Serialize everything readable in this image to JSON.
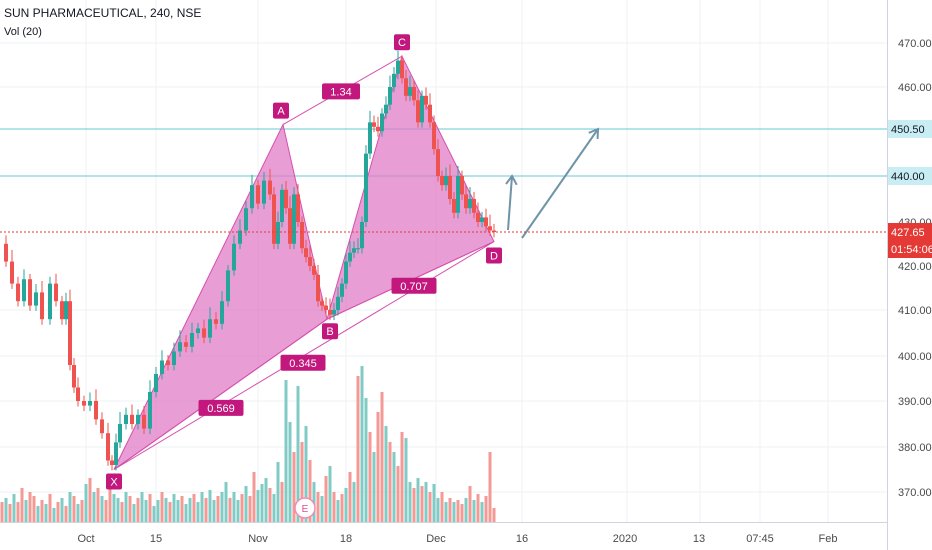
{
  "header": {
    "symbol": "SUN PHARMACEUTICAL, 240, NSE",
    "volume_indicator": "Vol (20)"
  },
  "colors": {
    "up": "#26a69a",
    "down": "#ef5350",
    "vol_up": "#80cbc4",
    "vol_down": "#f39a96",
    "pattern_fill": "#e07cc6",
    "pattern_stroke": "#d64fae",
    "label_bg": "#c2187d",
    "hline": "#67c9d6",
    "arrow": "#6f94a8",
    "price_line": "#e53935",
    "axis_text": "#4a4a4a",
    "grid": "#eef1f4"
  },
  "chart_data": {
    "type": "candlestick",
    "ylim": [
      362,
      478
    ],
    "y_ticks": [
      "470.00",
      "460.00",
      "440.00",
      "420.00",
      "410.00",
      "400.00",
      "390.00",
      "380.00",
      "370.00"
    ],
    "x_tick_labels": [
      "Oct",
      "15",
      "Nov",
      "18",
      "Dec",
      "16",
      "2020",
      "13",
      "07:45",
      "Feb"
    ],
    "price_labels": {
      "last": "427.65",
      "countdown": "01:54:06",
      "level_1": "450.50",
      "level_2": "440.00",
      "partial_tick": "430.00"
    },
    "horizontal_levels": [
      450.5,
      440.0
    ],
    "last_price": 427.65,
    "pattern": {
      "points": [
        {
          "label": "X",
          "price": 375
        },
        {
          "label": "A",
          "price": 451.5
        },
        {
          "label": "B",
          "price": 408
        },
        {
          "label": "C",
          "price": 467
        },
        {
          "label": "D",
          "price": 425.5
        }
      ],
      "ratios": [
        "0.569",
        "0.345",
        "1.34",
        "0.707"
      ]
    },
    "projection_targets": [
      440.0,
      450.5
    ],
    "close_points": [
      [
        0,
        425
      ],
      [
        6,
        421
      ],
      [
        12,
        416
      ],
      [
        18,
        412
      ],
      [
        24,
        417
      ],
      [
        30,
        411
      ],
      [
        36,
        414
      ],
      [
        42,
        408
      ],
      [
        50,
        416
      ],
      [
        56,
        412
      ],
      [
        62,
        408
      ],
      [
        66,
        412
      ],
      [
        70,
        398
      ],
      [
        74,
        393
      ],
      [
        78,
        390
      ],
      [
        84,
        389
      ],
      [
        90,
        390
      ],
      [
        96,
        386
      ],
      [
        102,
        383
      ],
      [
        108,
        377
      ],
      [
        112,
        376
      ],
      [
        116,
        381
      ],
      [
        120,
        385
      ],
      [
        126,
        387
      ],
      [
        132,
        385
      ],
      [
        138,
        387
      ],
      [
        144,
        384
      ],
      [
        150,
        392
      ],
      [
        156,
        396
      ],
      [
        162,
        399
      ],
      [
        168,
        398
      ],
      [
        174,
        401
      ],
      [
        180,
        403
      ],
      [
        186,
        402
      ],
      [
        192,
        405
      ],
      [
        198,
        406
      ],
      [
        204,
        404
      ],
      [
        210,
        408
      ],
      [
        216,
        407
      ],
      [
        222,
        412
      ],
      [
        228,
        419
      ],
      [
        234,
        425
      ],
      [
        240,
        428
      ],
      [
        246,
        433
      ],
      [
        252,
        438
      ],
      [
        258,
        434
      ],
      [
        264,
        439
      ],
      [
        270,
        436
      ],
      [
        274,
        425
      ],
      [
        278,
        430
      ],
      [
        282,
        437
      ],
      [
        286,
        433
      ],
      [
        290,
        425
      ],
      [
        294,
        436
      ],
      [
        298,
        430
      ],
      [
        302,
        424
      ],
      [
        306,
        422
      ],
      [
        310,
        420
      ],
      [
        314,
        418
      ],
      [
        318,
        412
      ],
      [
        322,
        411
      ],
      [
        326,
        410
      ],
      [
        330,
        409
      ],
      [
        334,
        410
      ],
      [
        338,
        413
      ],
      [
        342,
        416
      ],
      [
        346,
        421
      ],
      [
        350,
        423
      ],
      [
        354,
        424
      ],
      [
        358,
        424
      ],
      [
        362,
        430
      ],
      [
        366,
        445
      ],
      [
        370,
        452
      ],
      [
        374,
        451
      ],
      [
        378,
        450
      ],
      [
        382,
        454
      ],
      [
        386,
        456
      ],
      [
        390,
        460
      ],
      [
        394,
        463
      ],
      [
        398,
        466
      ],
      [
        402,
        462
      ],
      [
        406,
        458
      ],
      [
        410,
        460
      ],
      [
        414,
        457
      ],
      [
        418,
        452
      ],
      [
        422,
        458
      ],
      [
        426,
        456
      ],
      [
        430,
        452
      ],
      [
        434,
        446
      ],
      [
        438,
        440
      ],
      [
        442,
        438
      ],
      [
        446,
        440
      ],
      [
        450,
        435
      ],
      [
        454,
        432
      ],
      [
        458,
        440
      ],
      [
        462,
        436
      ],
      [
        466,
        433
      ],
      [
        470,
        435
      ],
      [
        474,
        432
      ],
      [
        478,
        430
      ],
      [
        482,
        431
      ],
      [
        486,
        429
      ],
      [
        490,
        428
      ],
      [
        494,
        427.65
      ]
    ],
    "volume_heights": [
      [
        2,
        20,
        0
      ],
      [
        6,
        24,
        1
      ],
      [
        10,
        18,
        0
      ],
      [
        14,
        28,
        1
      ],
      [
        18,
        20,
        0
      ],
      [
        22,
        34,
        0
      ],
      [
        26,
        22,
        1
      ],
      [
        30,
        30,
        0
      ],
      [
        34,
        26,
        0
      ],
      [
        38,
        16,
        1
      ],
      [
        42,
        22,
        0
      ],
      [
        46,
        18,
        1
      ],
      [
        50,
        28,
        0
      ],
      [
        54,
        14,
        1
      ],
      [
        58,
        20,
        0
      ],
      [
        62,
        24,
        1
      ],
      [
        66,
        16,
        0
      ],
      [
        70,
        30,
        1
      ],
      [
        74,
        26,
        0
      ],
      [
        78,
        18,
        1
      ],
      [
        82,
        22,
        0
      ],
      [
        86,
        38,
        1
      ],
      [
        90,
        44,
        0
      ],
      [
        94,
        30,
        1
      ],
      [
        98,
        34,
        0
      ],
      [
        102,
        26,
        1
      ],
      [
        106,
        22,
        0
      ],
      [
        110,
        34,
        0
      ],
      [
        114,
        28,
        1
      ],
      [
        118,
        24,
        1
      ],
      [
        122,
        20,
        0
      ],
      [
        126,
        30,
        1
      ],
      [
        130,
        26,
        0
      ],
      [
        134,
        18,
        1
      ],
      [
        138,
        24,
        0
      ],
      [
        142,
        30,
        1
      ],
      [
        146,
        22,
        1
      ],
      [
        150,
        28,
        0
      ],
      [
        154,
        16,
        1
      ],
      [
        158,
        22,
        1
      ],
      [
        162,
        30,
        0
      ],
      [
        166,
        24,
        1
      ],
      [
        170,
        20,
        0
      ],
      [
        174,
        28,
        1
      ],
      [
        178,
        22,
        1
      ],
      [
        182,
        26,
        0
      ],
      [
        186,
        18,
        1
      ],
      [
        190,
        24,
        1
      ],
      [
        194,
        28,
        0
      ],
      [
        198,
        20,
        1
      ],
      [
        202,
        30,
        1
      ],
      [
        206,
        24,
        0
      ],
      [
        210,
        32,
        1
      ],
      [
        214,
        22,
        1
      ],
      [
        218,
        26,
        0
      ],
      [
        222,
        30,
        1
      ],
      [
        226,
        40,
        1
      ],
      [
        230,
        24,
        0
      ],
      [
        234,
        30,
        1
      ],
      [
        238,
        22,
        1
      ],
      [
        242,
        28,
        0
      ],
      [
        246,
        36,
        1
      ],
      [
        250,
        26,
        0
      ],
      [
        254,
        50,
        0
      ],
      [
        258,
        32,
        1
      ],
      [
        262,
        38,
        1
      ],
      [
        266,
        44,
        1
      ],
      [
        270,
        34,
        0
      ],
      [
        274,
        28,
        1
      ],
      [
        278,
        60,
        1
      ],
      [
        282,
        40,
        0
      ],
      [
        286,
        142,
        1
      ],
      [
        290,
        100,
        1
      ],
      [
        294,
        70,
        0
      ],
      [
        298,
        136,
        1
      ],
      [
        302,
        80,
        0
      ],
      [
        306,
        96,
        1
      ],
      [
        310,
        62,
        0
      ],
      [
        314,
        40,
        1
      ],
      [
        318,
        30,
        0
      ],
      [
        322,
        26,
        1
      ],
      [
        326,
        46,
        0
      ],
      [
        330,
        56,
        1
      ],
      [
        334,
        30,
        0
      ],
      [
        338,
        22,
        1
      ],
      [
        342,
        28,
        0
      ],
      [
        346,
        34,
        1
      ],
      [
        350,
        50,
        0
      ],
      [
        354,
        40,
        1
      ],
      [
        358,
        146,
        0
      ],
      [
        362,
        156,
        1
      ],
      [
        366,
        124,
        1
      ],
      [
        370,
        90,
        0
      ],
      [
        374,
        70,
        1
      ],
      [
        378,
        110,
        0
      ],
      [
        382,
        130,
        0
      ],
      [
        386,
        96,
        1
      ],
      [
        390,
        80,
        0
      ],
      [
        394,
        70,
        1
      ],
      [
        398,
        56,
        0
      ],
      [
        402,
        90,
        0
      ],
      [
        406,
        84,
        1
      ],
      [
        410,
        40,
        1
      ],
      [
        414,
        34,
        0
      ],
      [
        418,
        44,
        1
      ],
      [
        422,
        36,
        0
      ],
      [
        426,
        40,
        1
      ],
      [
        430,
        30,
        0
      ],
      [
        434,
        38,
        1
      ],
      [
        438,
        24,
        1
      ],
      [
        442,
        30,
        0
      ],
      [
        446,
        20,
        1
      ],
      [
        450,
        24,
        0
      ],
      [
        454,
        20,
        1
      ],
      [
        458,
        22,
        0
      ],
      [
        462,
        18,
        0
      ],
      [
        466,
        24,
        1
      ],
      [
        470,
        36,
        0
      ],
      [
        474,
        22,
        1
      ],
      [
        478,
        28,
        0
      ],
      [
        482,
        20,
        1
      ],
      [
        486,
        26,
        0
      ],
      [
        490,
        70,
        0
      ],
      [
        494,
        14,
        0
      ]
    ]
  }
}
